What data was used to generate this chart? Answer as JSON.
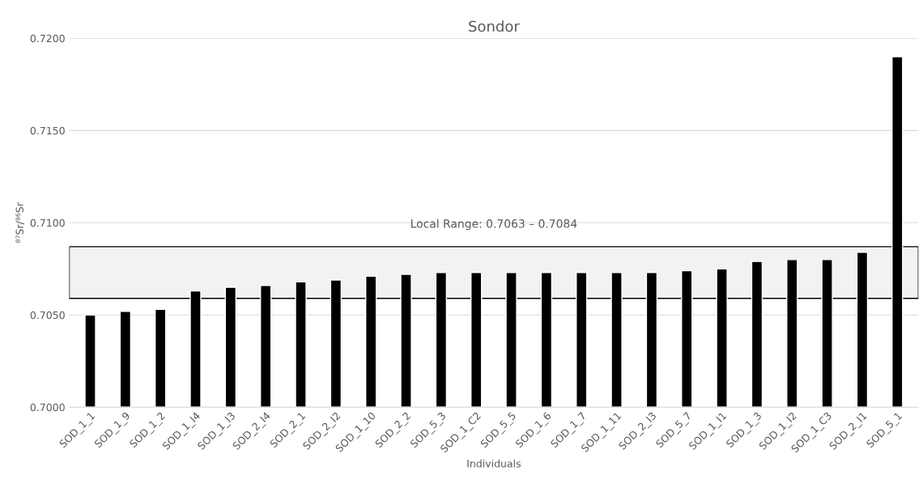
{
  "chart_data": {
    "type": "bar",
    "title": "Sondor",
    "xlabel": "Individuals",
    "ylabel": "⁸⁷Sr/⁸⁶Sr",
    "categories": [
      "SOD_1_1",
      "SOD_1_9",
      "SOD_1_2",
      "SOD_1_I4",
      "SOD_1_I3",
      "SOD_2_I4",
      "SOD_2_1",
      "SOD_2_I2",
      "SOD_1_10",
      "SOD_2_2",
      "SOD_5_3",
      "SOD_1_C2",
      "SOD_5_5",
      "SOD_1_6",
      "SOD_1_7",
      "SOD_1_11",
      "SOD_2_I3",
      "SOD_5_7",
      "SOD_1_I1",
      "SOD_1_3",
      "SOD_1_I2",
      "SOD_1_C3",
      "SOD_2_I1",
      "SOD_5_1"
    ],
    "values": [
      0.705,
      0.7052,
      0.7053,
      0.7063,
      0.7065,
      0.7066,
      0.7068,
      0.7069,
      0.7071,
      0.7072,
      0.7073,
      0.7073,
      0.7073,
      0.7073,
      0.7073,
      0.7073,
      0.7073,
      0.7074,
      0.7075,
      0.7079,
      0.708,
      0.708,
      0.7084,
      0.719
    ],
    "color": "#000000",
    "ylim": [
      0.7,
      0.72
    ],
    "yticks": [
      {
        "value": 0.7,
        "label": "0.7000"
      },
      {
        "value": 0.705,
        "label": "0.7050"
      },
      {
        "value": 0.71,
        "label": "0.7100"
      },
      {
        "value": 0.715,
        "label": "0.7150"
      },
      {
        "value": 0.72,
        "label": "0.7200"
      }
    ],
    "bands": [
      {
        "axis": "y",
        "from": 0.7059,
        "to": 0.7087,
        "label": "Local Range: 0.7063 – 0.7084",
        "color": "#f2f2f2"
      }
    ],
    "grid": "y",
    "legend": false
  }
}
